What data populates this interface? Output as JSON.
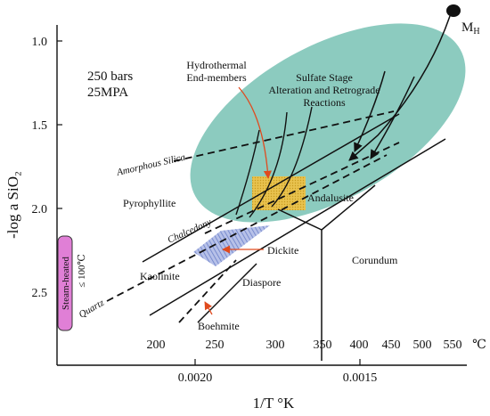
{
  "axes": {
    "y_title": "-log a SiO₂",
    "x_title": "1/T °K",
    "y_ticks": [
      "1.0",
      "1.5",
      "2.0",
      "2.5"
    ],
    "x_ticks": [
      "0.0020",
      "0.0015"
    ],
    "temperature_ticks": [
      "200",
      "250",
      "300",
      "350",
      "400",
      "450",
      "500",
      "550",
      "℃"
    ]
  },
  "conditions": {
    "pressure_bars": "250 bars",
    "pressure_mpa": "25MPA"
  },
  "point_label": {
    "main": "M",
    "sub": "H"
  },
  "annotations": {
    "hydrothermal": [
      "Hydrothermal",
      "End-members"
    ],
    "sulfate": [
      "Sulfate Stage",
      "Alteration and Retrograde",
      "Reactions"
    ]
  },
  "silica_phases": {
    "amorphous": "Amorphous Silica",
    "chalcedony": "Chalcedony",
    "quartz": "Quartz"
  },
  "minerals": {
    "pyrophyllite": "Pyrophyllite",
    "andalusite": "Andalusite",
    "dickite": "Dickite",
    "kaolinite": "Kaolinite",
    "diaspore": "Diaspore",
    "corundum": "Corundum",
    "boehmite": "Boehmite"
  },
  "steam_heated": {
    "label": "Steam-heated",
    "condition": "≤ 100℃"
  },
  "colors": {
    "teal_field": "#8ccbbf",
    "yellow_box": "#e6c24a",
    "blue_field": "#9aa8dc",
    "pink_bar": "#e07fd6",
    "arrow_red": "#e04a1e"
  }
}
